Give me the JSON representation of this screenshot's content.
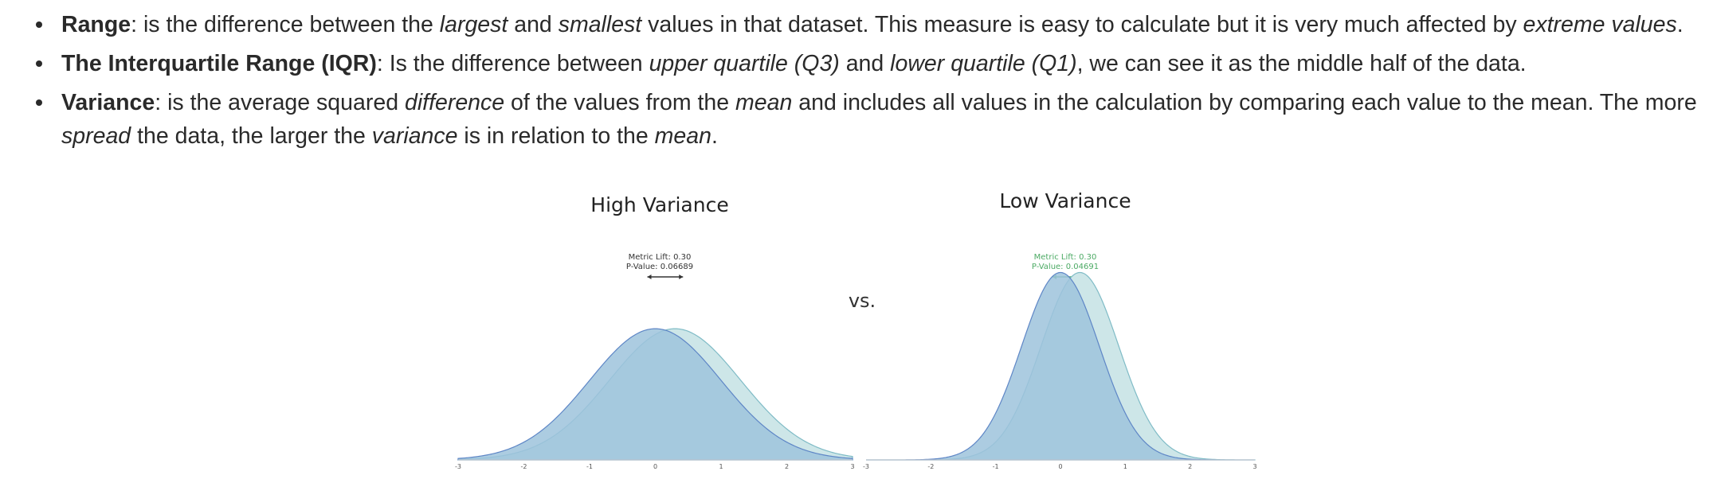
{
  "bullets": [
    {
      "parts": [
        {
          "t": "Range",
          "s": "b"
        },
        {
          "t": ": is the difference between the ",
          "s": ""
        },
        {
          "t": "largest",
          "s": "i"
        },
        {
          "t": " and ",
          "s": ""
        },
        {
          "t": "smallest",
          "s": "i"
        },
        {
          "t": " values in that dataset. This measure is easy to calculate but it is very much affected by ",
          "s": ""
        },
        {
          "t": "extreme values",
          "s": "i"
        },
        {
          "t": ".",
          "s": ""
        }
      ]
    },
    {
      "parts": [
        {
          "t": "The Interquartile Range (IQR)",
          "s": "b"
        },
        {
          "t": ": Is the difference between ",
          "s": ""
        },
        {
          "t": "upper quartile (Q3)",
          "s": "i"
        },
        {
          "t": " and ",
          "s": ""
        },
        {
          "t": "lower quartile (Q1)",
          "s": "i"
        },
        {
          "t": ", we can see it as the middle half of the data.",
          "s": ""
        }
      ]
    },
    {
      "parts": [
        {
          "t": "Variance",
          "s": "b"
        },
        {
          "t": ": is the average squared ",
          "s": ""
        },
        {
          "t": "difference",
          "s": "i"
        },
        {
          "t": " of the values from the ",
          "s": ""
        },
        {
          "t": "mean",
          "s": "i"
        },
        {
          "t": " and includes all values in the calculation by comparing each value to the mean. The more ",
          "s": ""
        },
        {
          "t": "spread",
          "s": "i"
        },
        {
          "t": " the data, the larger the ",
          "s": ""
        },
        {
          "t": "variance",
          "s": "i"
        },
        {
          "t": " is in relation to the ",
          "s": ""
        },
        {
          "t": "mean",
          "s": "i"
        },
        {
          "t": ".",
          "s": ""
        }
      ]
    }
  ],
  "figure": {
    "vs_label": "vs.",
    "colors": {
      "control_fill": "#9ec3dc",
      "treatment_fill": "#cde6e8",
      "overlap_fill": "#a4c9dd",
      "control_stroke": "#5e86c6",
      "treatment_stroke": "#7fbbc6",
      "axis": "#d0d0d0",
      "tick_text": "#555555",
      "dark_annotation": "#333333",
      "green_annotation": "#4caa64"
    }
  },
  "chart_data": [
    {
      "type": "area",
      "title": "High Variance",
      "annotation_lines": [
        "Metric Lift: 0.30",
        "P-Value: 0.06689"
      ],
      "annotation_color": "dark",
      "xlim": [
        -3,
        3
      ],
      "x_ticks": [
        "-3",
        "-2",
        "-1",
        "0",
        "1",
        "2",
        "3"
      ],
      "series": [
        {
          "mean": 0.0,
          "sd": 1.0
        },
        {
          "mean": 0.3,
          "sd": 1.0
        }
      ],
      "ylim": [
        0,
        0.6
      ]
    },
    {
      "type": "area",
      "title": "Low Variance",
      "annotation_lines": [
        "Metric Lift: 0.30",
        "P-Value: 0.04691"
      ],
      "annotation_color": "green",
      "xlim": [
        -3,
        3
      ],
      "x_ticks": [
        "-3",
        "-2",
        "-1",
        "0",
        "1",
        "2",
        "3"
      ],
      "series": [
        {
          "mean": 0.0,
          "sd": 0.6
        },
        {
          "mean": 0.3,
          "sd": 0.6
        }
      ],
      "ylim": [
        0,
        0.7
      ]
    }
  ]
}
